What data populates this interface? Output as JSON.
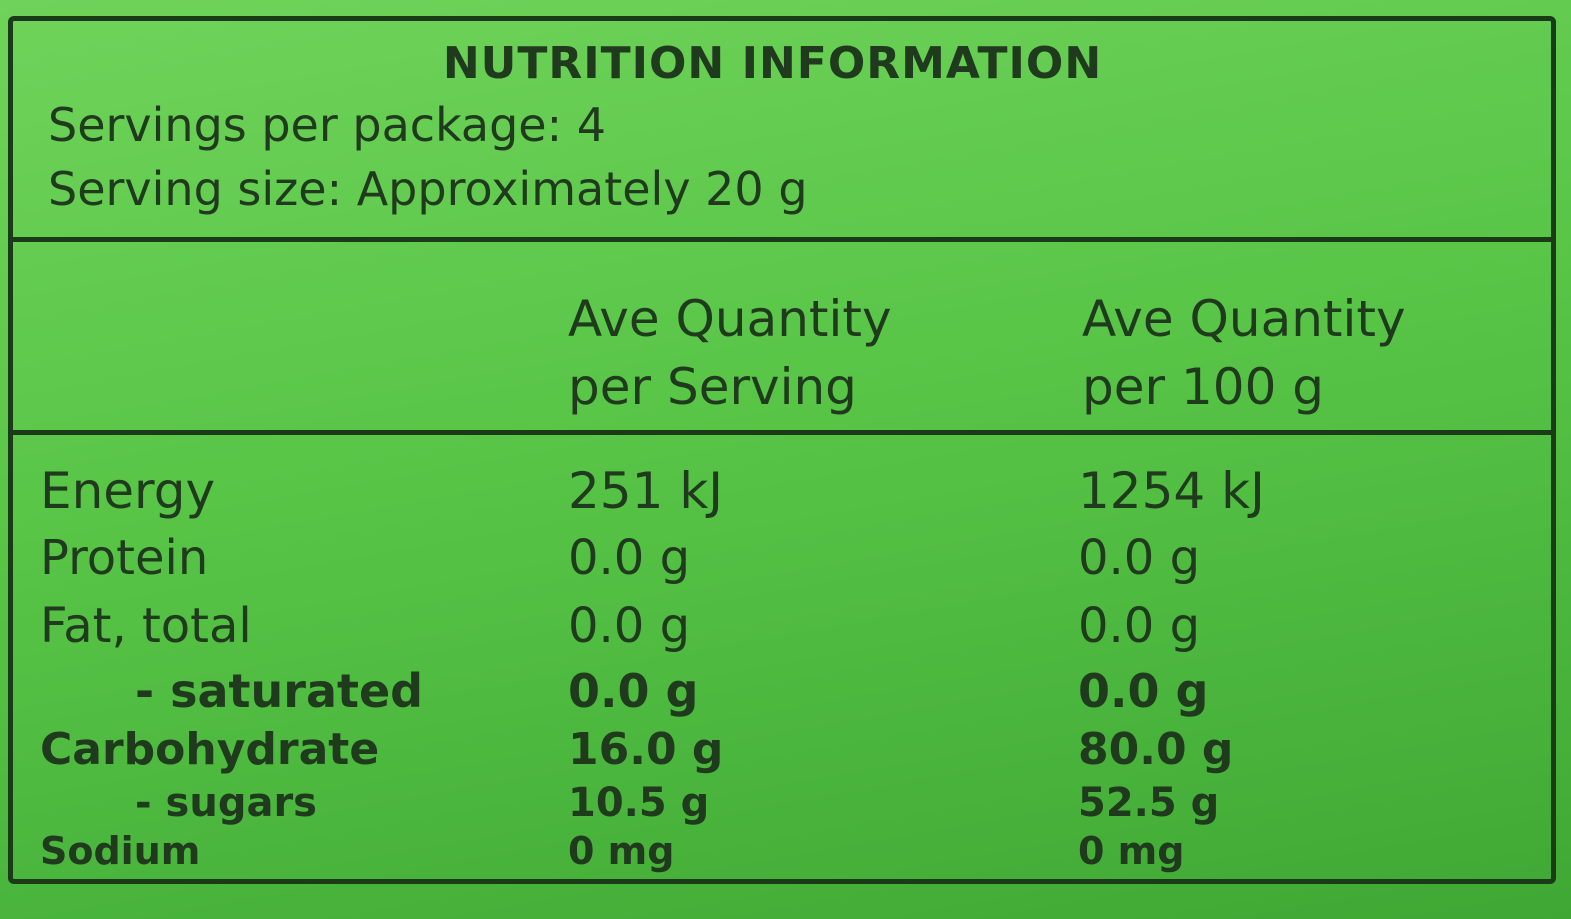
{
  "header": {
    "title": "NUTRITION INFORMATION",
    "servings_per_package": "Servings per package: 4",
    "serving_size": "Serving size: Approximately 20 g"
  },
  "table": {
    "columns": [
      "Ave Quantity per Serving",
      "Ave Quantity per 100 g"
    ],
    "rows": [
      [
        "Energy",
        "251 kJ",
        "1254 kJ"
      ],
      [
        "Protein",
        "0.0 g",
        "0.0 g"
      ],
      [
        "Fat, total",
        "0.0 g",
        "0.0 g"
      ],
      [
        "- saturated",
        "0.0 g",
        "0.0 g"
      ],
      [
        "Carbohydrate",
        "16.0 g",
        "80.0 g"
      ],
      [
        "- sugars",
        "10.5 g",
        "52.5 g"
      ],
      [
        "Sodium",
        "0 mg",
        "0 mg"
      ]
    ]
  }
}
